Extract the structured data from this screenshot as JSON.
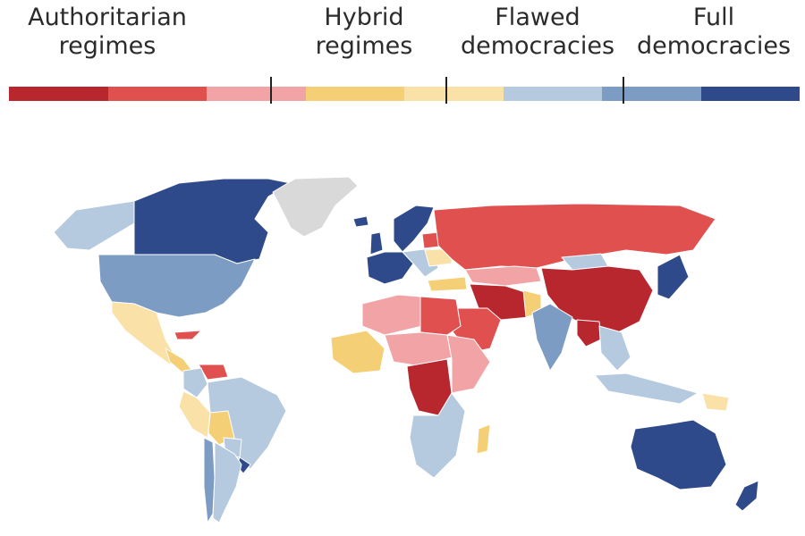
{
  "legend": {
    "categories": [
      {
        "line1": "Authoritarian",
        "line2": "regimes"
      },
      {
        "line1": "Hybrid",
        "line2": "regimes"
      },
      {
        "line1": "Flawed",
        "line2": "democracies"
      },
      {
        "line1": "Full",
        "line2": "democracies"
      }
    ],
    "swatches": [
      {
        "group": "authoritarian",
        "color": "#b8262e"
      },
      {
        "group": "authoritarian",
        "color": "#e0504f"
      },
      {
        "group": "authoritarian",
        "color": "#f2a3a5"
      },
      {
        "group": "hybrid",
        "color": "#f5cf76"
      },
      {
        "group": "hybrid",
        "color": "#f9e1a8"
      },
      {
        "group": "flawed",
        "color": "#b5c9df"
      },
      {
        "group": "flawed",
        "color": "#7d9cc3"
      },
      {
        "group": "full",
        "color": "#2f4a8a"
      }
    ]
  },
  "colors": {
    "no_data": "#d9d9d9",
    "border": "#ffffff"
  },
  "regions": [
    {
      "name": "canada",
      "class": "full"
    },
    {
      "name": "alaska",
      "class": "flawed-light"
    },
    {
      "name": "greenland",
      "class": "no-data"
    },
    {
      "name": "usa",
      "class": "flawed-mid"
    },
    {
      "name": "mexico",
      "class": "hybrid-light"
    },
    {
      "name": "cuba",
      "class": "auth-mid"
    },
    {
      "name": "central-america",
      "class": "hybrid-mid"
    },
    {
      "name": "venezuela",
      "class": "auth-mid"
    },
    {
      "name": "colombia",
      "class": "flawed-light"
    },
    {
      "name": "brazil",
      "class": "flawed-light"
    },
    {
      "name": "peru",
      "class": "hybrid-light"
    },
    {
      "name": "bolivia",
      "class": "hybrid-mid"
    },
    {
      "name": "paraguay",
      "class": "flawed-light"
    },
    {
      "name": "uruguay",
      "class": "full"
    },
    {
      "name": "chile",
      "class": "flawed-mid"
    },
    {
      "name": "argentina",
      "class": "flawed-light"
    },
    {
      "name": "iceland",
      "class": "full"
    },
    {
      "name": "scandinavia",
      "class": "full"
    },
    {
      "name": "uk",
      "class": "full"
    },
    {
      "name": "western-europe",
      "class": "full"
    },
    {
      "name": "eastern-europe",
      "class": "flawed-light"
    },
    {
      "name": "belarus",
      "class": "auth-mid"
    },
    {
      "name": "ukraine",
      "class": "hybrid-light"
    },
    {
      "name": "turkey",
      "class": "hybrid-mid"
    },
    {
      "name": "russia",
      "class": "auth-mid"
    },
    {
      "name": "kazakhstan",
      "class": "auth-light"
    },
    {
      "name": "mongolia",
      "class": "flawed-light"
    },
    {
      "name": "china",
      "class": "auth-dark"
    },
    {
      "name": "korea-japan",
      "class": "full"
    },
    {
      "name": "middle-east",
      "class": "auth-dark"
    },
    {
      "name": "arabia",
      "class": "auth-mid"
    },
    {
      "name": "pakistan",
      "class": "hybrid-mid"
    },
    {
      "name": "india",
      "class": "flawed-mid"
    },
    {
      "name": "myanmar",
      "class": "auth-dark"
    },
    {
      "name": "southeast-asia",
      "class": "flawed-light"
    },
    {
      "name": "indonesia",
      "class": "flawed-light"
    },
    {
      "name": "papua",
      "class": "hybrid-light"
    },
    {
      "name": "north-africa",
      "class": "auth-light"
    },
    {
      "name": "egypt-libya",
      "class": "auth-mid"
    },
    {
      "name": "west-africa",
      "class": "hybrid-mid"
    },
    {
      "name": "sahel",
      "class": "auth-light"
    },
    {
      "name": "central-africa",
      "class": "auth-dark"
    },
    {
      "name": "east-africa",
      "class": "auth-light"
    },
    {
      "name": "southern-africa",
      "class": "flawed-light"
    },
    {
      "name": "madagascar",
      "class": "hybrid-mid"
    },
    {
      "name": "australia",
      "class": "full"
    },
    {
      "name": "new-zealand",
      "class": "full"
    }
  ],
  "palette": {
    "auth-dark": "#b8262e",
    "auth-mid": "#e0504f",
    "auth-light": "#f2a3a5",
    "hybrid-mid": "#f5cf76",
    "hybrid-light": "#f9e1a8",
    "flawed-light": "#b5c9df",
    "flawed-mid": "#7d9cc3",
    "full": "#2f4a8a",
    "no-data": "#d9d9d9"
  }
}
